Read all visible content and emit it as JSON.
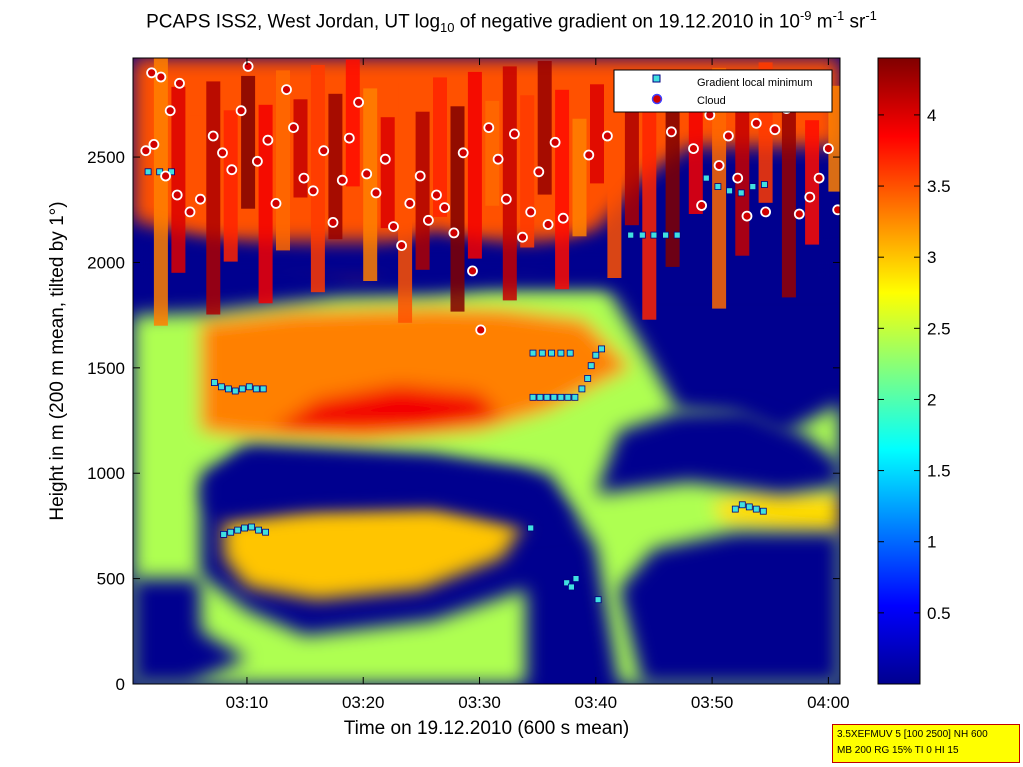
{
  "chart_data": {
    "type": "heatmap",
    "title_parts": {
      "main": "PCAPS ISS2, West Jordan, UT log",
      "sub": "10",
      "after_sub": " of negative gradient on 19.12.2010 in 10",
      "sup1": "-9",
      "mid": " m",
      "sup2": "-1",
      "end": " sr",
      "sup3": "-1"
    },
    "xlabel": "Time on 19.12.2010 (600 s mean)",
    "ylabel": "Height in m (200 m mean, tilted by 1°)",
    "x_ticks": [
      "03:10",
      "03:20",
      "03:30",
      "03:40",
      "03:50",
      "04:00"
    ],
    "x_tick_minutes": [
      190,
      200,
      210,
      220,
      230,
      240
    ],
    "xlim_minutes": [
      180.2,
      241.0
    ],
    "y_ticks": [
      "0",
      "500",
      "1000",
      "1500",
      "2000",
      "2500"
    ],
    "y_tick_values": [
      0,
      500,
      1000,
      1500,
      2000,
      2500
    ],
    "ylim": [
      0,
      2970
    ],
    "colorbar": {
      "ticks": [
        "0.5",
        "1",
        "1.5",
        "2",
        "2.5",
        "3",
        "3.5",
        "4"
      ],
      "tick_values": [
        0.5,
        1,
        1.5,
        2,
        2.5,
        3,
        3.5,
        4
      ],
      "range": [
        0,
        4.4
      ],
      "colormap": "jet"
    },
    "legend": {
      "position": "top-right",
      "entries": [
        {
          "label": "Gradient local minimum",
          "marker": "square",
          "color": "#40e0e0"
        },
        {
          "label": "Cloud",
          "marker": "circle",
          "color": "#d00000"
        }
      ]
    },
    "regions": [
      {
        "t0": 186,
        "t1": 211,
        "h0": 1180,
        "h1": 1780,
        "level": 3.4
      },
      {
        "t0": 211,
        "t1": 221,
        "h0": 1250,
        "h1": 1850,
        "level": 3.7
      },
      {
        "t0": 188,
        "t1": 214,
        "h0": 400,
        "h1": 820,
        "level": 3.0
      },
      {
        "t0": 180,
        "t1": 241,
        "h0": 2100,
        "h1": 2970,
        "level": 3.5
      }
    ],
    "gradient_minima": [
      {
        "t": 187.2,
        "h": 1430
      },
      {
        "t": 187.8,
        "h": 1410
      },
      {
        "t": 188.4,
        "h": 1400
      },
      {
        "t": 189.0,
        "h": 1390
      },
      {
        "t": 189.6,
        "h": 1400
      },
      {
        "t": 190.2,
        "h": 1410
      },
      {
        "t": 190.8,
        "h": 1400
      },
      {
        "t": 191.4,
        "h": 1400
      },
      {
        "t": 188.0,
        "h": 710
      },
      {
        "t": 188.6,
        "h": 720
      },
      {
        "t": 189.2,
        "h": 730
      },
      {
        "t": 189.8,
        "h": 740
      },
      {
        "t": 190.4,
        "h": 745
      },
      {
        "t": 191.0,
        "h": 730
      },
      {
        "t": 191.6,
        "h": 720
      },
      {
        "t": 214.6,
        "h": 1360
      },
      {
        "t": 215.2,
        "h": 1360
      },
      {
        "t": 215.8,
        "h": 1360
      },
      {
        "t": 216.4,
        "h": 1360
      },
      {
        "t": 217.0,
        "h": 1360
      },
      {
        "t": 217.6,
        "h": 1360
      },
      {
        "t": 218.2,
        "h": 1360
      },
      {
        "t": 218.8,
        "h": 1400
      },
      {
        "t": 219.3,
        "h": 1450
      },
      {
        "t": 219.6,
        "h": 1510
      },
      {
        "t": 220.0,
        "h": 1560
      },
      {
        "t": 220.5,
        "h": 1590
      },
      {
        "t": 214.6,
        "h": 1570
      },
      {
        "t": 215.4,
        "h": 1570
      },
      {
        "t": 216.2,
        "h": 1570
      },
      {
        "t": 217.0,
        "h": 1570
      },
      {
        "t": 217.8,
        "h": 1570
      },
      {
        "t": 214.4,
        "h": 740
      },
      {
        "t": 217.5,
        "h": 480
      },
      {
        "t": 217.9,
        "h": 460
      },
      {
        "t": 218.3,
        "h": 500
      },
      {
        "t": 220.2,
        "h": 400
      },
      {
        "t": 232.0,
        "h": 830
      },
      {
        "t": 232.6,
        "h": 850
      },
      {
        "t": 233.2,
        "h": 840
      },
      {
        "t": 233.8,
        "h": 830
      },
      {
        "t": 234.4,
        "h": 820
      },
      {
        "t": 223.0,
        "h": 2130
      },
      {
        "t": 224.0,
        "h": 2130
      },
      {
        "t": 225.0,
        "h": 2130
      },
      {
        "t": 226.0,
        "h": 2130
      },
      {
        "t": 227.0,
        "h": 2130
      },
      {
        "t": 181.5,
        "h": 2430
      },
      {
        "t": 182.5,
        "h": 2430
      },
      {
        "t": 183.5,
        "h": 2430
      },
      {
        "t": 229.5,
        "h": 2400
      },
      {
        "t": 230.5,
        "h": 2360
      },
      {
        "t": 231.5,
        "h": 2340
      },
      {
        "t": 232.5,
        "h": 2330
      },
      {
        "t": 233.5,
        "h": 2360
      },
      {
        "t": 234.5,
        "h": 2370
      }
    ],
    "clouds": [
      {
        "t": 181.8,
        "h": 2900
      },
      {
        "t": 182.6,
        "h": 2880
      },
      {
        "t": 183.4,
        "h": 2720
      },
      {
        "t": 184.2,
        "h": 2850
      },
      {
        "t": 181.3,
        "h": 2530
      },
      {
        "t": 182.0,
        "h": 2560
      },
      {
        "t": 183.0,
        "h": 2410
      },
      {
        "t": 184.0,
        "h": 2320
      },
      {
        "t": 185.1,
        "h": 2240
      },
      {
        "t": 186.0,
        "h": 2300
      },
      {
        "t": 187.1,
        "h": 2600
      },
      {
        "t": 187.9,
        "h": 2520
      },
      {
        "t": 188.7,
        "h": 2440
      },
      {
        "t": 189.5,
        "h": 2720
      },
      {
        "t": 190.1,
        "h": 2930
      },
      {
        "t": 190.9,
        "h": 2480
      },
      {
        "t": 191.8,
        "h": 2580
      },
      {
        "t": 192.5,
        "h": 2280
      },
      {
        "t": 193.4,
        "h": 2820
      },
      {
        "t": 194.0,
        "h": 2640
      },
      {
        "t": 194.9,
        "h": 2400
      },
      {
        "t": 195.7,
        "h": 2340
      },
      {
        "t": 196.6,
        "h": 2530
      },
      {
        "t": 197.4,
        "h": 2190
      },
      {
        "t": 198.2,
        "h": 2390
      },
      {
        "t": 198.8,
        "h": 2590
      },
      {
        "t": 199.6,
        "h": 2760
      },
      {
        "t": 200.3,
        "h": 2420
      },
      {
        "t": 201.1,
        "h": 2330
      },
      {
        "t": 201.9,
        "h": 2490
      },
      {
        "t": 202.6,
        "h": 2170
      },
      {
        "t": 203.3,
        "h": 2080
      },
      {
        "t": 204.0,
        "h": 2280
      },
      {
        "t": 204.9,
        "h": 2410
      },
      {
        "t": 205.6,
        "h": 2200
      },
      {
        "t": 206.3,
        "h": 2320
      },
      {
        "t": 207.0,
        "h": 2260
      },
      {
        "t": 207.8,
        "h": 2140
      },
      {
        "t": 208.6,
        "h": 2520
      },
      {
        "t": 209.4,
        "h": 1960
      },
      {
        "t": 210.1,
        "h": 1680
      },
      {
        "t": 210.8,
        "h": 2640
      },
      {
        "t": 211.6,
        "h": 2490
      },
      {
        "t": 212.3,
        "h": 2300
      },
      {
        "t": 213.0,
        "h": 2610
      },
      {
        "t": 213.7,
        "h": 2120
      },
      {
        "t": 214.4,
        "h": 2240
      },
      {
        "t": 215.1,
        "h": 2430
      },
      {
        "t": 215.9,
        "h": 2180
      },
      {
        "t": 216.5,
        "h": 2570
      },
      {
        "t": 217.2,
        "h": 2210
      },
      {
        "t": 219.4,
        "h": 2510
      },
      {
        "t": 221.0,
        "h": 2600
      },
      {
        "t": 226.5,
        "h": 2620
      },
      {
        "t": 227.5,
        "h": 2760
      },
      {
        "t": 228.4,
        "h": 2540
      },
      {
        "t": 229.1,
        "h": 2270
      },
      {
        "t": 229.8,
        "h": 2700
      },
      {
        "t": 230.6,
        "h": 2460
      },
      {
        "t": 231.4,
        "h": 2600
      },
      {
        "t": 232.2,
        "h": 2400
      },
      {
        "t": 233.0,
        "h": 2220
      },
      {
        "t": 233.8,
        "h": 2660
      },
      {
        "t": 234.6,
        "h": 2240
      },
      {
        "t": 235.4,
        "h": 2630
      },
      {
        "t": 236.4,
        "h": 2730
      },
      {
        "t": 237.5,
        "h": 2230
      },
      {
        "t": 238.4,
        "h": 2310
      },
      {
        "t": 239.2,
        "h": 2400
      },
      {
        "t": 240.0,
        "h": 2540
      },
      {
        "t": 240.8,
        "h": 2250
      }
    ],
    "colors": {
      "background_low": "#00008f",
      "axis": "#000000"
    }
  },
  "stamp": {
    "line1": "3.5XEFMUV 5 [100 2500] NH 600",
    "line2": "MB 200 RG 15% TI 0 HI 15"
  }
}
